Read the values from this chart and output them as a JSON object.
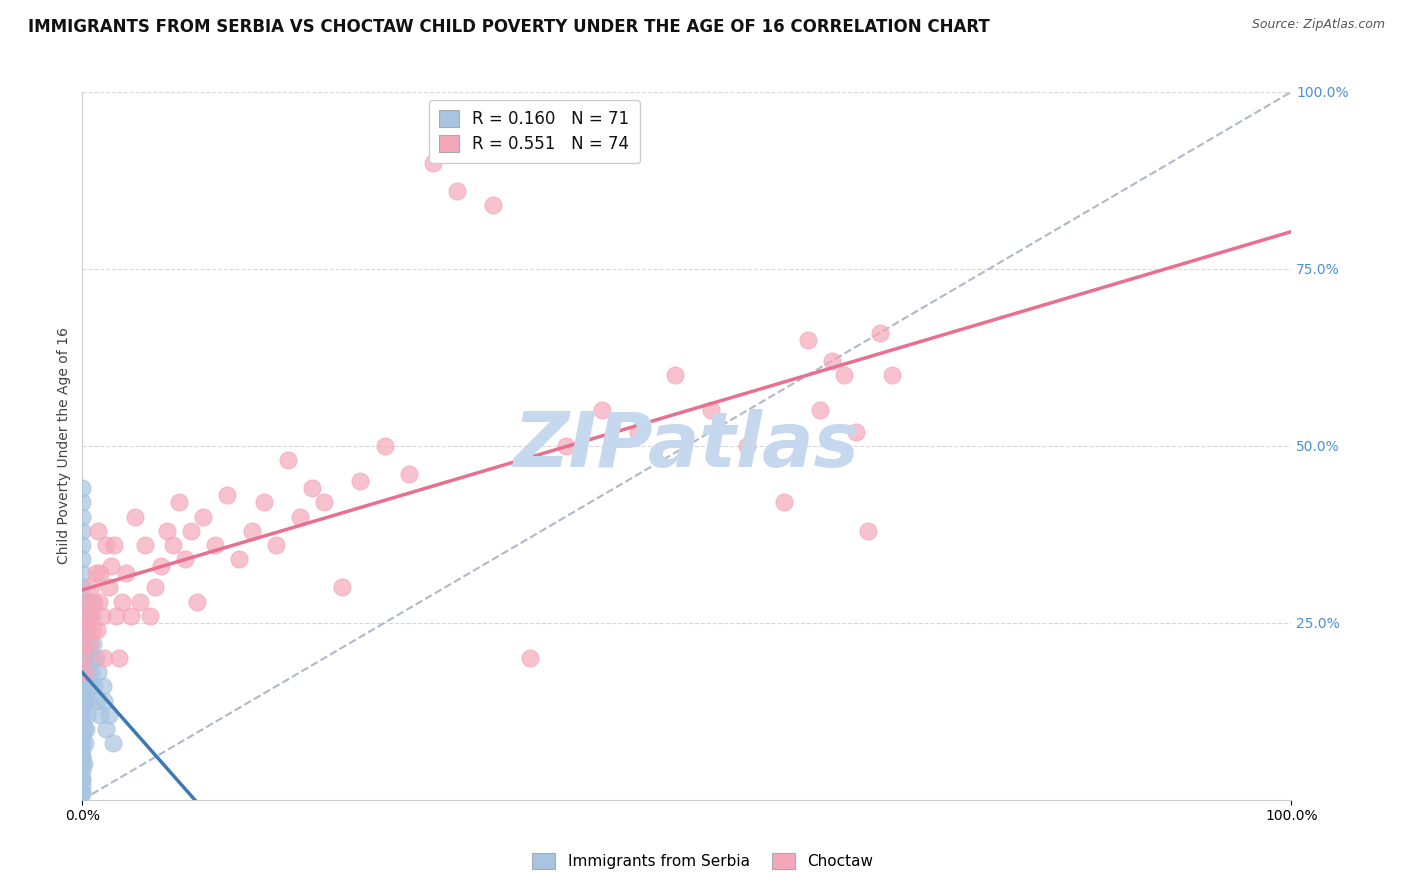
{
  "title": "IMMIGRANTS FROM SERBIA VS CHOCTAW CHILD POVERTY UNDER THE AGE OF 16 CORRELATION CHART",
  "source": "Source: ZipAtlas.com",
  "ylabel": "Child Poverty Under the Age of 16",
  "legend_serbia_r": "R = 0.160",
  "legend_serbia_n": "N = 71",
  "legend_choctaw_r": "R = 0.551",
  "legend_choctaw_n": "N = 74",
  "serbia_color": "#a8c4e0",
  "choctaw_color": "#f4a7b9",
  "serbia_line_color": "#3d7ab5",
  "choctaw_line_color": "#e8708e",
  "diag_line_color": "#b0b8c8",
  "watermark": "ZIPatlas",
  "serbia_x": [
    0.0,
    0.0,
    0.0,
    0.0,
    0.0,
    0.0,
    0.0,
    0.0,
    0.0,
    0.0,
    0.0,
    0.0,
    0.0,
    0.0,
    0.0,
    0.0,
    0.0,
    0.0,
    0.0,
    0.0,
    0.0,
    0.0,
    0.0,
    0.0,
    0.0,
    0.0,
    0.0,
    0.0,
    0.0,
    0.0,
    0.0,
    0.0,
    0.0,
    0.0,
    0.0,
    0.0,
    0.0,
    0.0,
    0.0,
    0.0,
    0.001,
    0.001,
    0.001,
    0.001,
    0.002,
    0.002,
    0.002,
    0.003,
    0.003,
    0.003,
    0.004,
    0.004,
    0.004,
    0.005,
    0.005,
    0.006,
    0.006,
    0.007,
    0.008,
    0.008,
    0.009,
    0.01,
    0.011,
    0.012,
    0.013,
    0.015,
    0.017,
    0.018,
    0.02,
    0.022,
    0.025
  ],
  "serbia_y": [
    0.01,
    0.02,
    0.03,
    0.04,
    0.05,
    0.06,
    0.07,
    0.08,
    0.09,
    0.1,
    0.11,
    0.12,
    0.13,
    0.14,
    0.15,
    0.16,
    0.17,
    0.18,
    0.19,
    0.2,
    0.21,
    0.22,
    0.23,
    0.24,
    0.25,
    0.26,
    0.27,
    0.28,
    0.3,
    0.32,
    0.34,
    0.36,
    0.38,
    0.4,
    0.42,
    0.44,
    0.01,
    0.03,
    0.06,
    0.09,
    0.05,
    0.1,
    0.15,
    0.2,
    0.08,
    0.14,
    0.2,
    0.1,
    0.17,
    0.25,
    0.12,
    0.18,
    0.28,
    0.14,
    0.22,
    0.16,
    0.26,
    0.18,
    0.2,
    0.28,
    0.22,
    0.16,
    0.2,
    0.14,
    0.18,
    0.12,
    0.16,
    0.14,
    0.1,
    0.12,
    0.08
  ],
  "choctaw_x": [
    0.0,
    0.0,
    0.001,
    0.002,
    0.003,
    0.004,
    0.005,
    0.006,
    0.007,
    0.008,
    0.009,
    0.01,
    0.011,
    0.012,
    0.013,
    0.014,
    0.015,
    0.016,
    0.018,
    0.02,
    0.022,
    0.024,
    0.026,
    0.028,
    0.03,
    0.033,
    0.036,
    0.04,
    0.044,
    0.048,
    0.052,
    0.056,
    0.06,
    0.065,
    0.07,
    0.075,
    0.08,
    0.085,
    0.09,
    0.095,
    0.1,
    0.11,
    0.12,
    0.13,
    0.14,
    0.15,
    0.16,
    0.17,
    0.18,
    0.19,
    0.2,
    0.215,
    0.23,
    0.25,
    0.27,
    0.29,
    0.31,
    0.34,
    0.37,
    0.4,
    0.43,
    0.46,
    0.49,
    0.52,
    0.55,
    0.58,
    0.6,
    0.61,
    0.62,
    0.63,
    0.64,
    0.65,
    0.66,
    0.67
  ],
  "choctaw_y": [
    0.22,
    0.25,
    0.2,
    0.18,
    0.26,
    0.28,
    0.24,
    0.22,
    0.3,
    0.26,
    0.24,
    0.28,
    0.32,
    0.24,
    0.38,
    0.28,
    0.32,
    0.26,
    0.2,
    0.36,
    0.3,
    0.33,
    0.36,
    0.26,
    0.2,
    0.28,
    0.32,
    0.26,
    0.4,
    0.28,
    0.36,
    0.26,
    0.3,
    0.33,
    0.38,
    0.36,
    0.42,
    0.34,
    0.38,
    0.28,
    0.4,
    0.36,
    0.43,
    0.34,
    0.38,
    0.42,
    0.36,
    0.48,
    0.4,
    0.44,
    0.42,
    0.3,
    0.45,
    0.5,
    0.46,
    0.9,
    0.86,
    0.84,
    0.2,
    0.5,
    0.55,
    0.52,
    0.6,
    0.55,
    0.5,
    0.42,
    0.65,
    0.55,
    0.62,
    0.6,
    0.52,
    0.38,
    0.66,
    0.6
  ],
  "xlim": [
    0.0,
    1.0
  ],
  "ylim": [
    0.0,
    1.0
  ],
  "xticks": [
    0.0,
    1.0
  ],
  "xticklabels": [
    "0.0%",
    "100.0%"
  ],
  "yticks_right": [
    0.25,
    0.5,
    0.75,
    1.0
  ],
  "yticklabels_right": [
    "25.0%",
    "50.0%",
    "75.0%",
    "100.0%"
  ],
  "background_color": "#ffffff",
  "grid_color": "#d8d8d8",
  "title_fontsize": 12,
  "axis_label_fontsize": 10,
  "tick_fontsize": 10,
  "legend_fontsize": 12,
  "watermark_color": "#c5d8ee",
  "watermark_fontsize": 55,
  "right_tick_color": "#4a90d9"
}
